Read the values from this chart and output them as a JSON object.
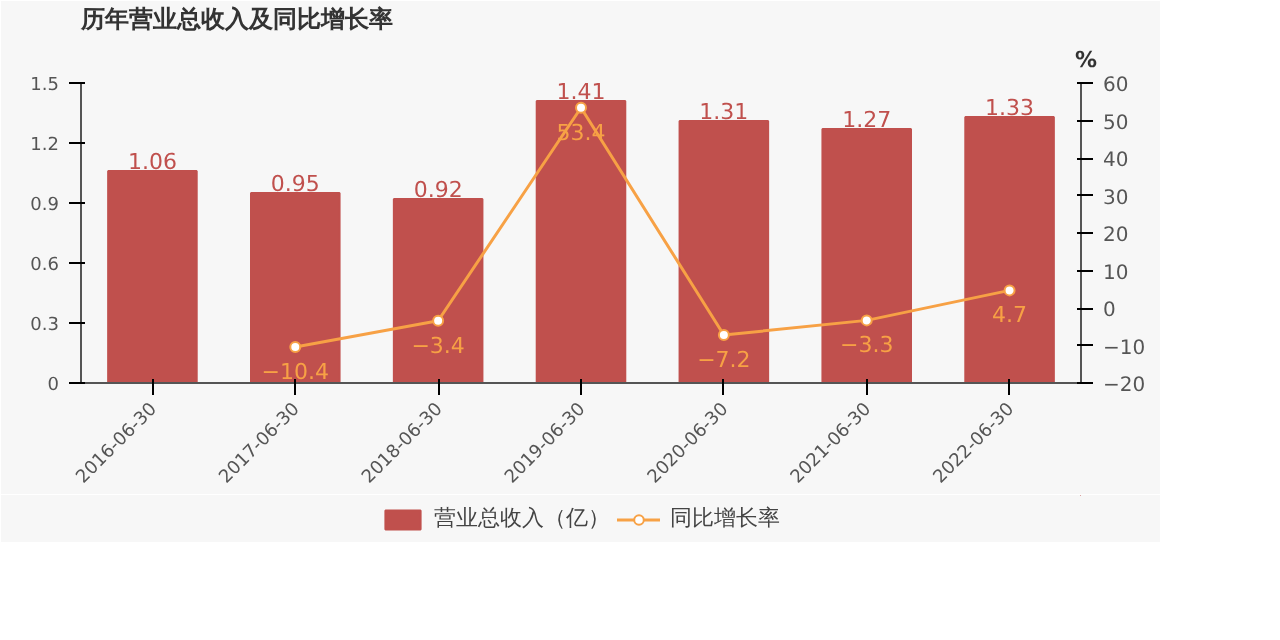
{
  "chart_data": {
    "type": "bar",
    "title": "历年营业总收入及同比增长率",
    "categories": [
      "2016-06-30",
      "2017-06-30",
      "2018-06-30",
      "2019-06-30",
      "2020-06-30",
      "2021-06-30",
      "2022-06-30"
    ],
    "series": [
      {
        "name": "营业总收入（亿）",
        "type": "bar",
        "color": "#c0504d",
        "values": [
          1.06,
          0.95,
          0.92,
          1.41,
          1.31,
          1.27,
          1.33
        ]
      },
      {
        "name": "同比增长率",
        "type": "line",
        "axis": "y2",
        "color": "#f7a145",
        "marker": "circle",
        "values": [
          null,
          -10.4,
          -3.4,
          53.4,
          -7.2,
          -3.3,
          4.7
        ]
      }
    ],
    "ylim": [
      0,
      1.5
    ],
    "yticks": [
      0,
      0.3,
      0.6,
      0.9,
      1.2,
      1.5
    ],
    "y2lim": [
      -20,
      60
    ],
    "y2ticks": [
      -20,
      -10,
      0,
      10,
      20,
      30,
      40,
      50,
      60
    ],
    "y2label": "%",
    "data_labels": true,
    "grid": false,
    "legend": "bottom"
  }
}
